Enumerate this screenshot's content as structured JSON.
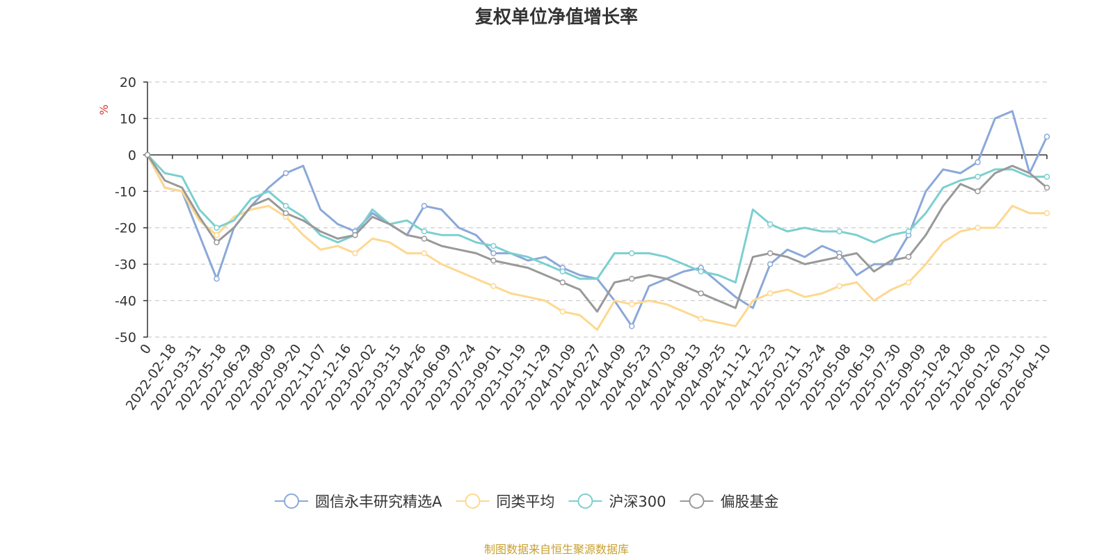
{
  "chart_data": {
    "type": "line",
    "title": "复权单位净值增长率",
    "ylabel": "%",
    "ylim": [
      -50,
      20
    ],
    "yticks": [
      20,
      10,
      0,
      -10,
      -20,
      -30,
      -40,
      -50
    ],
    "grid": true,
    "legend_position": "bottom",
    "x_tick_labels": [
      "0",
      "2022-02-18",
      "2022-03-31",
      "2022-05-18",
      "2022-06-29",
      "2022-08-09",
      "2022-09-20",
      "2022-11-07",
      "2022-12-16",
      "2023-02-02",
      "2023-03-15",
      "2023-04-26",
      "2023-06-09",
      "2023-07-24",
      "2023-09-01",
      "2023-10-19",
      "2023-11-29",
      "2024-01-09",
      "2024-02-27",
      "2024-04-09",
      "2024-05-23",
      "2024-07-03",
      "2024-08-13",
      "2024-09-25",
      "2024-11-12",
      "2024-12-23",
      "2025-02-11",
      "2025-03-24",
      "2025-05-08",
      "2025-06-19",
      "2025-07-30",
      "2025-09-09",
      "2025-10-28",
      "2025-12-08",
      "2026-01-20",
      "2026-03-10",
      "2026-04-10"
    ],
    "series": [
      {
        "name": "圆信永丰研究精选A",
        "color": "#8aa8d8",
        "values": [
          0,
          -9,
          -10,
          -22,
          -34,
          -20,
          -14,
          -9,
          -5,
          -3,
          -15,
          -19,
          -21,
          -16,
          -19,
          -22,
          -14,
          -15,
          -20,
          -22,
          -27,
          -27,
          -29,
          -28,
          -31,
          -33,
          -34,
          -40,
          -47,
          -36,
          -34,
          -32,
          -31,
          -35,
          -39,
          -42,
          -30,
          -26,
          -28,
          -25,
          -27,
          -33,
          -30,
          -30,
          -22,
          -10,
          -4,
          -5,
          -2,
          10,
          12,
          -5,
          5
        ]
      },
      {
        "name": "同类平均",
        "color": "#fdd88f",
        "values": [
          0,
          -9,
          -10,
          -18,
          -22,
          -17,
          -15,
          -14,
          -17,
          -22,
          -26,
          -25,
          -27,
          -23,
          -24,
          -27,
          -27,
          -30,
          -32,
          -34,
          -36,
          -38,
          -39,
          -40,
          -43,
          -44,
          -48,
          -40,
          -41,
          -40,
          -41,
          -43,
          -45,
          -46,
          -47,
          -40,
          -38,
          -37,
          -39,
          -38,
          -36,
          -35,
          -40,
          -37,
          -35,
          -30,
          -24,
          -21,
          -20,
          -20,
          -14,
          -16,
          -16
        ]
      },
      {
        "name": "沪深300",
        "color": "#7ccfcf",
        "values": [
          0,
          -5,
          -6,
          -15,
          -20,
          -18,
          -12,
          -10,
          -14,
          -17,
          -22,
          -24,
          -22,
          -15,
          -19,
          -18,
          -21,
          -22,
          -22,
          -24,
          -25,
          -27,
          -28,
          -30,
          -32,
          -34,
          -34,
          -27,
          -27,
          -27,
          -28,
          -30,
          -32,
          -33,
          -35,
          -15,
          -19,
          -21,
          -20,
          -21,
          -21,
          -22,
          -24,
          -22,
          -21,
          -16,
          -9,
          -7,
          -6,
          -4,
          -4,
          -6,
          -6
        ]
      },
      {
        "name": "偏股基金",
        "color": "#999999",
        "values": [
          0,
          -7,
          -9,
          -17,
          -24,
          -20,
          -14,
          -12,
          -16,
          -18,
          -21,
          -23,
          -22,
          -17,
          -19,
          -22,
          -23,
          -25,
          -26,
          -27,
          -29,
          -30,
          -31,
          -33,
          -35,
          -37,
          -43,
          -35,
          -34,
          -33,
          -34,
          -36,
          -38,
          -40,
          -42,
          -28,
          -27,
          -28,
          -30,
          -29,
          -28,
          -27,
          -32,
          -29,
          -28,
          -22,
          -14,
          -8,
          -10,
          -5,
          -3,
          -5,
          -9
        ]
      }
    ]
  },
  "source_text": "制图数据来自恒生聚源数据库",
  "colors": {
    "source": "#c8a030",
    "unit": "#e03030",
    "axis": "#333333",
    "grid": "#cccccc"
  }
}
